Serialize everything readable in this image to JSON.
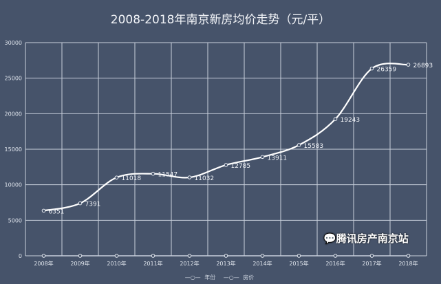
{
  "chart_data": {
    "type": "line",
    "title": "2008-2018年南京新房均价走势（元/平）",
    "categories": [
      "2008年",
      "2009年",
      "2010年",
      "2011年",
      "2012年",
      "2013年",
      "2014年",
      "2015年",
      "2016年",
      "2017年",
      "2018年"
    ],
    "series": [
      {
        "name": "年份",
        "values": [
          0,
          0,
          0,
          0,
          0,
          0,
          0,
          0,
          0,
          0,
          0
        ]
      },
      {
        "name": "房价",
        "values": [
          6351,
          7391,
          11018,
          11547,
          11032,
          12785,
          13911,
          15583,
          19243,
          26359,
          26893
        ]
      }
    ],
    "ylim": [
      0,
      30000
    ],
    "yticks": [
      0,
      5000,
      10000,
      15000,
      20000,
      25000,
      30000
    ],
    "grid": true,
    "legend": "bottom",
    "colors": {
      "background": "#46536a",
      "line": "#ffffff",
      "grid": "#c9d0dc"
    }
  },
  "watermark": "腾讯房产南京站"
}
